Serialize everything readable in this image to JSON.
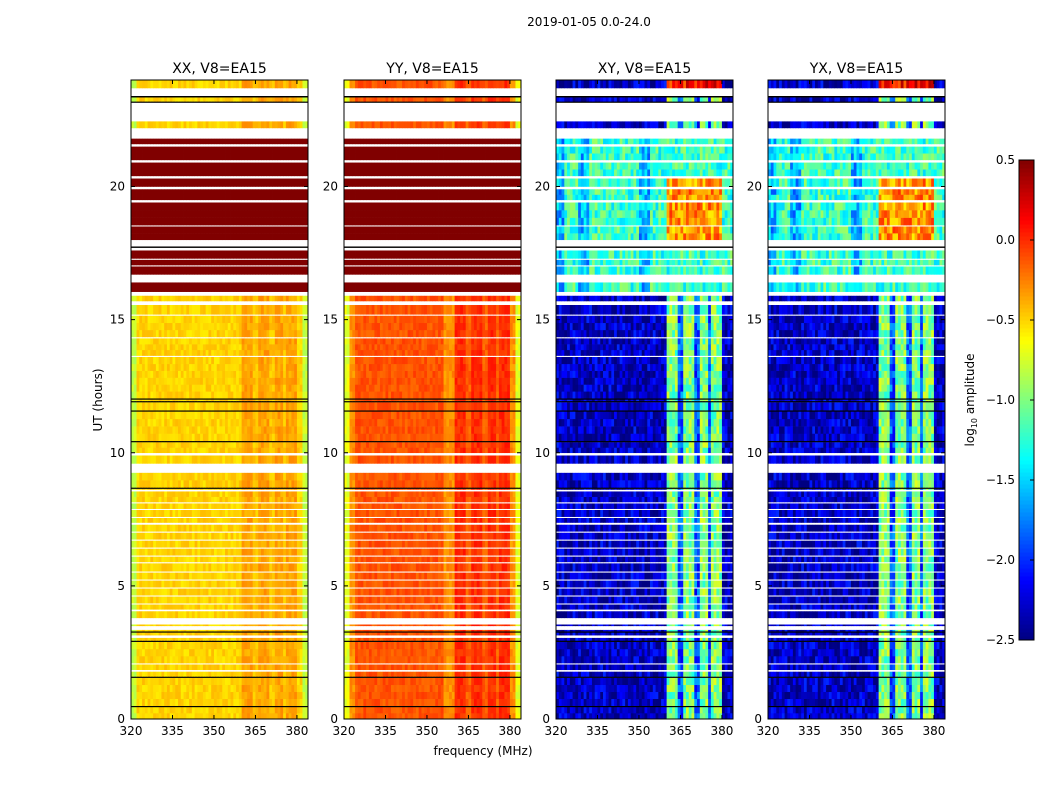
{
  "chart_data": {
    "type": "heatmap",
    "title": "2019-01-05 0.0-24.0",
    "xlabel": "frequency (MHz)",
    "ylabel": "UT (hours)",
    "xlim": [
      320,
      384
    ],
    "ylim": [
      0,
      24
    ],
    "xticks": [
      320,
      335,
      350,
      365,
      380
    ],
    "yticks": [
      0,
      5,
      10,
      15,
      20
    ],
    "colorbar": {
      "label_prefix": "log",
      "label_sub": "10",
      "label_suffix": " amplitude",
      "range": [
        -2.5,
        0.5
      ],
      "ticks": [
        "0.5",
        "0.0",
        "−0.5",
        "−1.0",
        "−1.5",
        "−2.0",
        "−2.5"
      ],
      "tick_values": [
        0.5,
        0.0,
        -0.5,
        -1.0,
        -1.5,
        -2.0,
        -2.5
      ],
      "colormap": "jet"
    },
    "time_segments": [
      [
        0,
        0.45,
        "day"
      ],
      [
        0.45,
        0.5,
        "flag"
      ],
      [
        0.5,
        1.55,
        "day"
      ],
      [
        1.55,
        1.6,
        "flag"
      ],
      [
        1.6,
        1.78,
        "day"
      ],
      [
        1.78,
        1.85,
        "gap"
      ],
      [
        1.85,
        2.05,
        "day"
      ],
      [
        2.05,
        2.1,
        "gap"
      ],
      [
        2.1,
        2.9,
        "day"
      ],
      [
        2.9,
        2.95,
        "flag"
      ],
      [
        2.95,
        3.05,
        "day"
      ],
      [
        3.05,
        3.15,
        "gap"
      ],
      [
        3.15,
        3.25,
        "day"
      ],
      [
        3.25,
        3.3,
        "flag"
      ],
      [
        3.3,
        3.35,
        "day"
      ],
      [
        3.35,
        3.5,
        "gap"
      ],
      [
        3.5,
        3.55,
        "day"
      ],
      [
        3.55,
        3.8,
        "gap"
      ],
      [
        3.8,
        4.05,
        "day"
      ],
      [
        4.05,
        4.12,
        "gap"
      ],
      [
        4.12,
        4.3,
        "day"
      ],
      [
        4.3,
        4.35,
        "gap"
      ],
      [
        4.35,
        4.6,
        "day"
      ],
      [
        4.6,
        4.65,
        "gap"
      ],
      [
        4.65,
        4.9,
        "day"
      ],
      [
        4.9,
        4.95,
        "gap"
      ],
      [
        4.95,
        5.2,
        "day"
      ],
      [
        5.2,
        5.25,
        "gap"
      ],
      [
        5.25,
        5.5,
        "day"
      ],
      [
        5.5,
        5.55,
        "gap"
      ],
      [
        5.55,
        5.85,
        "day"
      ],
      [
        5.85,
        5.9,
        "gap"
      ],
      [
        5.9,
        6.1,
        "day"
      ],
      [
        6.1,
        6.15,
        "gap"
      ],
      [
        6.15,
        6.4,
        "day"
      ],
      [
        6.4,
        6.45,
        "gap"
      ],
      [
        6.45,
        6.7,
        "day"
      ],
      [
        6.7,
        6.75,
        "gap"
      ],
      [
        6.75,
        7.0,
        "day"
      ],
      [
        7.0,
        7.05,
        "gap"
      ],
      [
        7.05,
        7.3,
        "day"
      ],
      [
        7.3,
        7.38,
        "gap"
      ],
      [
        7.38,
        7.55,
        "day"
      ],
      [
        7.55,
        7.6,
        "gap"
      ],
      [
        7.6,
        7.85,
        "day"
      ],
      [
        7.85,
        7.9,
        "gap"
      ],
      [
        7.9,
        8.1,
        "day"
      ],
      [
        8.1,
        8.15,
        "gap"
      ],
      [
        8.15,
        8.55,
        "day"
      ],
      [
        8.55,
        8.62,
        "gap"
      ],
      [
        8.62,
        8.65,
        "day"
      ],
      [
        8.65,
        8.7,
        "flag"
      ],
      [
        8.7,
        9.25,
        "day"
      ],
      [
        9.25,
        9.6,
        "gap"
      ],
      [
        9.6,
        9.9,
        "day"
      ],
      [
        9.9,
        10.0,
        "gap"
      ],
      [
        10.0,
        10.4,
        "day"
      ],
      [
        10.4,
        10.45,
        "flag"
      ],
      [
        10.45,
        11.55,
        "day"
      ],
      [
        11.55,
        11.6,
        "flag"
      ],
      [
        11.6,
        11.9,
        "day"
      ],
      [
        11.9,
        11.95,
        "flag"
      ],
      [
        11.95,
        12.0,
        "day"
      ],
      [
        12.0,
        12.05,
        "flag"
      ],
      [
        12.05,
        13.6,
        "day"
      ],
      [
        13.6,
        13.65,
        "gap"
      ],
      [
        13.65,
        14.3,
        "day"
      ],
      [
        14.3,
        14.35,
        "gap"
      ],
      [
        14.35,
        15.15,
        "day"
      ],
      [
        15.15,
        15.2,
        "gap"
      ],
      [
        15.2,
        15.55,
        "day"
      ],
      [
        15.55,
        15.7,
        "gap"
      ],
      [
        15.7,
        15.9,
        "day"
      ],
      [
        15.9,
        16.05,
        "gap"
      ],
      [
        16.05,
        16.4,
        "night"
      ],
      [
        16.4,
        16.7,
        "gap"
      ],
      [
        16.7,
        17.0,
        "night"
      ],
      [
        17.0,
        17.05,
        "gap"
      ],
      [
        17.05,
        17.25,
        "night"
      ],
      [
        17.25,
        17.3,
        "gap"
      ],
      [
        17.3,
        17.6,
        "night"
      ],
      [
        17.6,
        17.72,
        "gap"
      ],
      [
        17.72,
        17.75,
        "flag"
      ],
      [
        17.75,
        18.0,
        "gap"
      ],
      [
        18.0,
        18.5,
        "night"
      ],
      [
        18.5,
        18.55,
        "gap"
      ],
      [
        18.55,
        19.4,
        "night"
      ],
      [
        19.4,
        19.5,
        "gap"
      ],
      [
        19.5,
        19.9,
        "night"
      ],
      [
        19.9,
        20.0,
        "gap"
      ],
      [
        20.0,
        20.3,
        "night"
      ],
      [
        20.3,
        20.4,
        "gap"
      ],
      [
        20.4,
        20.9,
        "night"
      ],
      [
        20.9,
        21.0,
        "gap"
      ],
      [
        21.0,
        21.5,
        "night"
      ],
      [
        21.5,
        21.6,
        "gap"
      ],
      [
        21.6,
        21.8,
        "night"
      ],
      [
        21.8,
        22.2,
        "gap"
      ],
      [
        22.2,
        22.45,
        "day"
      ],
      [
        22.45,
        23.15,
        "gap"
      ],
      [
        23.15,
        23.2,
        "flag"
      ],
      [
        23.2,
        23.35,
        "day"
      ],
      [
        23.35,
        23.4,
        "flag"
      ],
      [
        23.4,
        23.7,
        "gap"
      ],
      [
        23.7,
        24,
        "day"
      ]
    ],
    "panels": [
      {
        "title": "XX, V8=EA15",
        "day": -0.5,
        "night": 0.6,
        "rfi_day": -0.35,
        "stripe": -0.45,
        "edge": -0.8,
        "mid_day": -0.5,
        "noise": 0.08,
        "rfi_night": 0.6
      },
      {
        "title": "YY, V8=EA15",
        "day": -0.3,
        "night": 0.6,
        "rfi_day": 0.0,
        "stripe": -0.15,
        "edge": -0.7,
        "mid_day": -0.12,
        "noise": 0.08,
        "rfi_night": 0.6
      },
      {
        "title": "XY, V8=EA15",
        "day": -2.3,
        "night": -1.2,
        "rfi_day": -1.0,
        "stripe": -1.9,
        "edge": -2.3,
        "mid_day": -2.3,
        "noise": 0.3,
        "rfi_night": -0.3
      },
      {
        "title": "YX, V8=EA15",
        "day": -2.3,
        "night": -1.2,
        "rfi_day": -1.0,
        "stripe": -1.9,
        "edge": -2.3,
        "mid_day": -2.3,
        "noise": 0.3,
        "rfi_night": -0.3
      }
    ],
    "rfi_band_mhz": [
      360.5,
      379.5
    ],
    "rfi_stripes_mhz": [
      365,
      371,
      375.5
    ]
  }
}
